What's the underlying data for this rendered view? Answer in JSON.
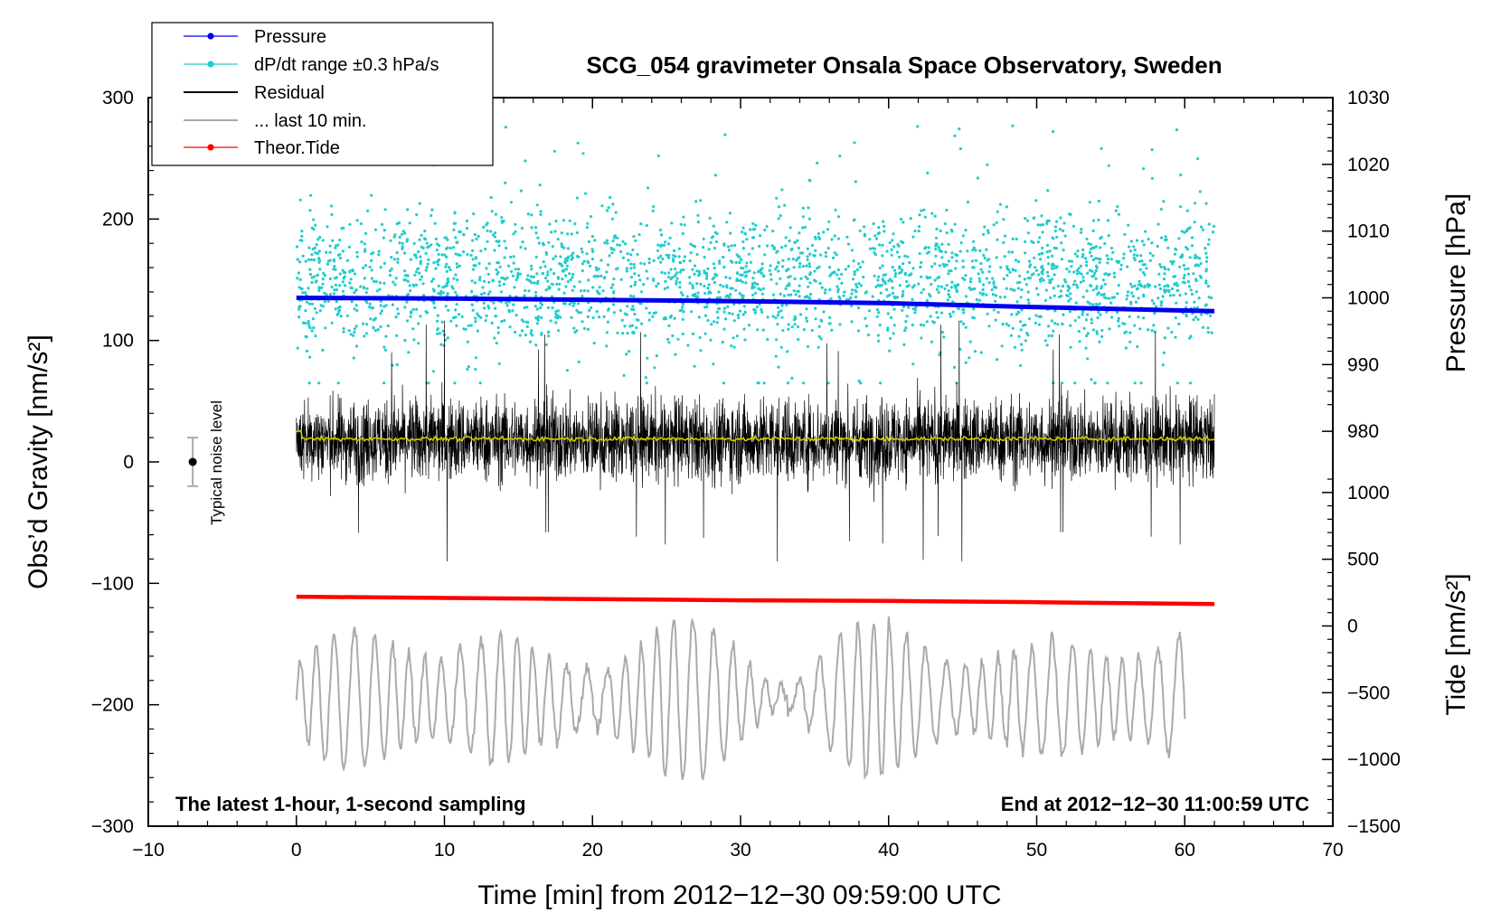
{
  "chart_data": {
    "type": "line",
    "title": "SCG_054 gravimeter Onsala Space Observatory, Sweden",
    "xlabel": "Time [min] from 2012−12−30 09:59:00 UTC",
    "ylabel_left": "Obs’d Gravity [nm/s²]",
    "ylabel_right_top": "Pressure [hPa]",
    "ylabel_right_bottom": "Tide [nm/s²]",
    "xlim": [
      -10,
      70
    ],
    "ylim_left": [
      -300,
      300
    ],
    "pressure_axis_range": [
      970,
      1030
    ],
    "tide_axis_range": [
      -1500,
      1500
    ],
    "x_ticks": [
      "−10",
      "0",
      "10",
      "20",
      "30",
      "40",
      "50",
      "60",
      "70"
    ],
    "x_tick_values": [
      -10,
      0,
      10,
      20,
      30,
      40,
      50,
      60,
      70
    ],
    "y_left_ticks": [
      "300",
      "200",
      "100",
      "0",
      "−100",
      "−200",
      "−300"
    ],
    "y_left_tick_values": [
      300,
      200,
      100,
      0,
      -100,
      -200,
      -300
    ],
    "pressure_ticks": [
      "1030",
      "1020",
      "1010",
      "1000",
      "990",
      "980"
    ],
    "pressure_tick_values": [
      1030,
      1020,
      1010,
      1000,
      990,
      980
    ],
    "tide_ticks": [
      "1000",
      "500",
      "0",
      "−500",
      "−1000",
      "−1500"
    ],
    "tide_tick_values": [
      1000,
      500,
      0,
      -500,
      -1000,
      -1500
    ],
    "legend": [
      "Pressure",
      "dP/dt range ±0.3 hPa/s",
      "Residual",
      "... last 10 min.",
      "Theor.Tide"
    ],
    "legend_position": "top-left",
    "series": [
      {
        "name": "Pressure",
        "color": "#0000ee",
        "axis": "pressure",
        "x": [
          0,
          10,
          20,
          30,
          40,
          50,
          62
        ],
        "values": [
          1000.0,
          999.9,
          999.7,
          999.5,
          999.2,
          998.6,
          998.0
        ]
      },
      {
        "name": "dP/dt range ±0.3 hPa/s",
        "color": "#22cccc",
        "axis": "left",
        "kind": "scatter",
        "center": 150,
        "spread": 50
      },
      {
        "name": "Residual",
        "color": "#000000",
        "axis": "left",
        "kind": "noise",
        "center": 18,
        "amplitude": 40
      },
      {
        "name": "Residual (smoothed)",
        "color": "#cccc00",
        "axis": "left",
        "x": [
          0,
          62
        ],
        "values": [
          19,
          19
        ]
      },
      {
        "name": "... last 10 min.",
        "color": "#aaaaaa",
        "axis": "left",
        "x_range": [
          0,
          60
        ],
        "center": -195,
        "amplitude": 30
      },
      {
        "name": "Theor.Tide",
        "color": "#ff0000",
        "axis": "left",
        "x": [
          0,
          10,
          20,
          30,
          40,
          50,
          62
        ],
        "values": [
          -111,
          -112,
          -113,
          -114,
          -114.5,
          -115.5,
          -117
        ]
      }
    ],
    "noise_marker": {
      "label": "Typical noise level",
      "x": -7,
      "center": 0,
      "half_range": 20
    },
    "annotations": {
      "bottom_left": "The latest 1-hour, 1-second sampling",
      "bottom_right": "End at 2012−12−30 11:00:59 UTC"
    }
  },
  "colors": {
    "pressure": "#0000ee",
    "dpdt": "#22cccc",
    "residual": "#000000",
    "last10": "#aaaaaa",
    "tide": "#ff0000",
    "smooth": "#cccc00"
  }
}
